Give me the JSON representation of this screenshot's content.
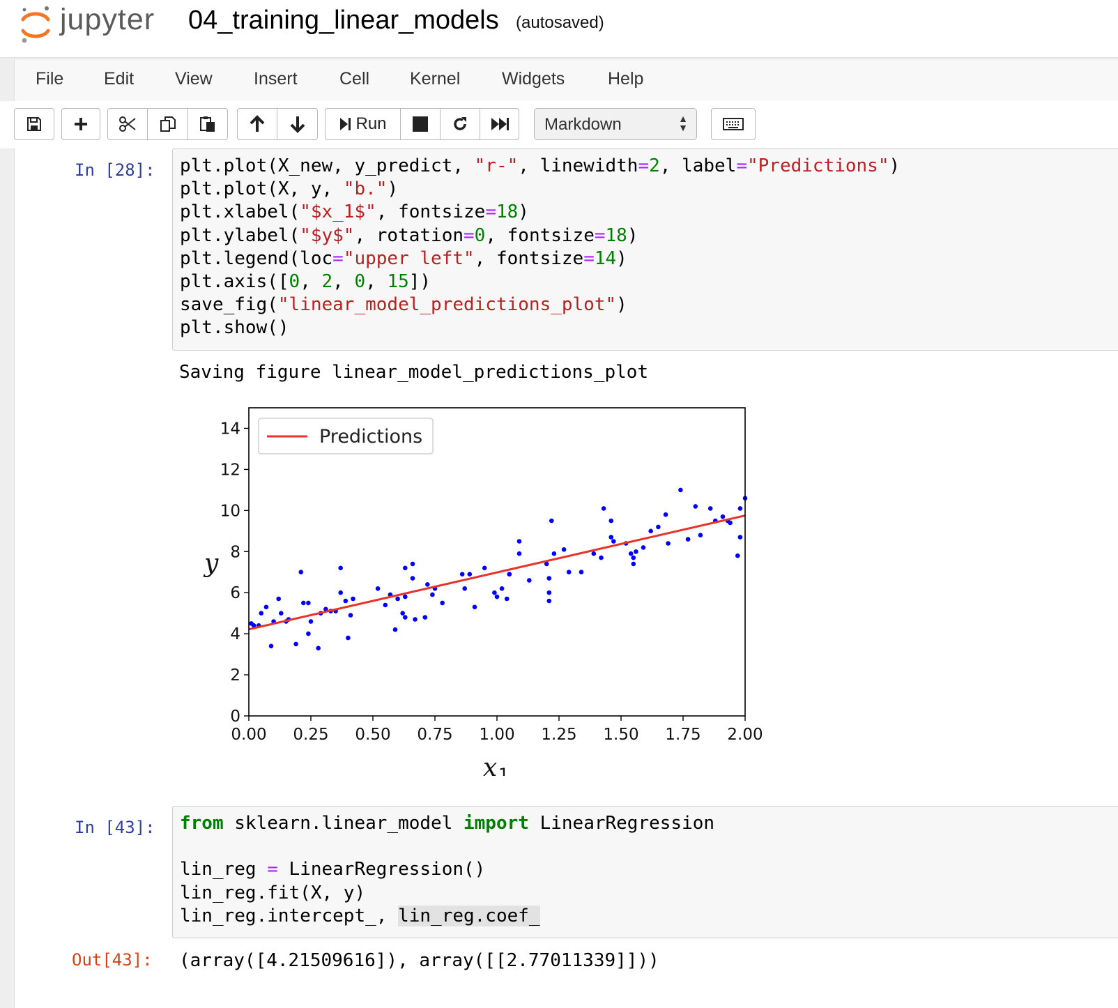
{
  "header": {
    "logo_text": "jupyter",
    "notebook_name": "04_training_linear_models",
    "autosave_status": "(autosaved)"
  },
  "menu": {
    "items": [
      "File",
      "Edit",
      "View",
      "Insert",
      "Cell",
      "Kernel",
      "Widgets",
      "Help"
    ]
  },
  "toolbar": {
    "run_label": "Run",
    "cell_type": "Markdown",
    "icons": [
      "save-icon",
      "plus-icon",
      "cut-icon",
      "copy-icon",
      "paste-icon",
      "arrow-up-icon",
      "arrow-down-icon",
      "step-icon",
      "stop-icon",
      "restart-icon",
      "fast-forward-icon",
      "keyboard-icon"
    ]
  },
  "cells": {
    "cell1": {
      "prompt": "In [28]:",
      "lines": [
        "plt.plot(X_new, y_predict, \"r-\", linewidth=2, label=\"Predictions\")",
        "plt.plot(X, y, \"b.\")",
        "plt.xlabel(\"$x_1$\", fontsize=18)",
        "plt.ylabel(\"$y$\", rotation=0, fontsize=18)",
        "plt.legend(loc=\"upper left\", fontsize=14)",
        "plt.axis([0, 2, 0, 15])",
        "save_fig(\"linear_model_predictions_plot\")",
        "plt.show()"
      ],
      "stream_output": "Saving figure linear_model_predictions_plot"
    },
    "cell2": {
      "prompt": "In [43]:",
      "lines": [
        "from sklearn.linear_model import LinearRegression",
        "",
        "lin_reg = LinearRegression()",
        "lin_reg.fit(X, y)",
        "lin_reg.intercept_, lin_reg.coef_"
      ],
      "out_prompt": "Out[43]:",
      "output": "(array([4.21509616]), array([[2.77011339]]))"
    }
  },
  "chart_data": {
    "type": "scatter",
    "xlabel": "x",
    "xlabel_subscript": "1",
    "ylabel": "y",
    "xlim": [
      0,
      2
    ],
    "ylim": [
      0,
      15
    ],
    "xticks": [
      "0.00",
      "0.25",
      "0.50",
      "0.75",
      "1.00",
      "1.25",
      "1.50",
      "1.75",
      "2.00"
    ],
    "yticks": [
      "0",
      "2",
      "4",
      "6",
      "8",
      "10",
      "12",
      "14"
    ],
    "legend": {
      "position": "upper-left",
      "entries": [
        "Predictions"
      ]
    },
    "grid": false,
    "series": [
      {
        "name": "Predictions",
        "kind": "line",
        "color": "#e8332b",
        "x": [
          0,
          2
        ],
        "y": [
          4.21509616,
          9.75532294
        ]
      }
    ],
    "points_color": "#0000ff",
    "points": [
      [
        0.01,
        4.5
      ],
      [
        0.02,
        4.4
      ],
      [
        0.04,
        4.4
      ],
      [
        0.05,
        5.0
      ],
      [
        0.07,
        5.3
      ],
      [
        0.09,
        3.4
      ],
      [
        0.1,
        4.6
      ],
      [
        0.12,
        5.7
      ],
      [
        0.13,
        5.0
      ],
      [
        0.15,
        4.6
      ],
      [
        0.16,
        4.7
      ],
      [
        0.19,
        3.5
      ],
      [
        0.21,
        7.0
      ],
      [
        0.22,
        5.5
      ],
      [
        0.24,
        5.5
      ],
      [
        0.25,
        4.6
      ],
      [
        0.24,
        4.0
      ],
      [
        0.28,
        3.3
      ],
      [
        0.29,
        5.0
      ],
      [
        0.31,
        5.2
      ],
      [
        0.33,
        5.1
      ],
      [
        0.35,
        5.1
      ],
      [
        0.37,
        6.0
      ],
      [
        0.37,
        7.2
      ],
      [
        0.39,
        5.6
      ],
      [
        0.4,
        3.8
      ],
      [
        0.41,
        4.9
      ],
      [
        0.42,
        5.7
      ],
      [
        0.52,
        6.2
      ],
      [
        0.55,
        5.4
      ],
      [
        0.57,
        5.9
      ],
      [
        0.59,
        4.2
      ],
      [
        0.6,
        5.7
      ],
      [
        0.62,
        5.0
      ],
      [
        0.63,
        5.8
      ],
      [
        0.63,
        4.8
      ],
      [
        0.63,
        7.2
      ],
      [
        0.66,
        7.4
      ],
      [
        0.66,
        6.7
      ],
      [
        0.67,
        4.7
      ],
      [
        0.71,
        4.8
      ],
      [
        0.72,
        6.4
      ],
      [
        0.74,
        5.9
      ],
      [
        0.75,
        6.2
      ],
      [
        0.78,
        5.5
      ],
      [
        0.86,
        6.9
      ],
      [
        0.87,
        6.2
      ],
      [
        0.89,
        6.9
      ],
      [
        0.91,
        5.3
      ],
      [
        0.95,
        7.2
      ],
      [
        0.99,
        6.0
      ],
      [
        1.0,
        5.8
      ],
      [
        1.02,
        6.2
      ],
      [
        1.04,
        5.7
      ],
      [
        1.05,
        6.9
      ],
      [
        1.05,
        6.9
      ],
      [
        1.09,
        8.5
      ],
      [
        1.09,
        7.9
      ],
      [
        1.13,
        6.6
      ],
      [
        1.2,
        7.4
      ],
      [
        1.21,
        6.0
      ],
      [
        1.21,
        6.7
      ],
      [
        1.21,
        5.6
      ],
      [
        1.22,
        9.5
      ],
      [
        1.23,
        7.9
      ],
      [
        1.27,
        8.1
      ],
      [
        1.29,
        7.0
      ],
      [
        1.34,
        7.0
      ],
      [
        1.39,
        7.9
      ],
      [
        1.42,
        7.7
      ],
      [
        1.43,
        10.1
      ],
      [
        1.46,
        9.5
      ],
      [
        1.46,
        8.7
      ],
      [
        1.47,
        8.5
      ],
      [
        1.52,
        8.4
      ],
      [
        1.54,
        7.9
      ],
      [
        1.55,
        7.7
      ],
      [
        1.55,
        7.4
      ],
      [
        1.56,
        8.0
      ],
      [
        1.59,
        8.2
      ],
      [
        1.62,
        9.0
      ],
      [
        1.65,
        9.2
      ],
      [
        1.68,
        9.8
      ],
      [
        1.69,
        8.4
      ],
      [
        1.74,
        11.0
      ],
      [
        1.77,
        8.6
      ],
      [
        1.8,
        10.2
      ],
      [
        1.82,
        8.8
      ],
      [
        1.86,
        10.1
      ],
      [
        1.88,
        9.5
      ],
      [
        1.91,
        9.7
      ],
      [
        1.93,
        9.5
      ],
      [
        1.94,
        9.4
      ],
      [
        1.97,
        7.8
      ],
      [
        1.98,
        8.7
      ],
      [
        1.98,
        10.1
      ],
      [
        2.0,
        10.6
      ]
    ]
  }
}
